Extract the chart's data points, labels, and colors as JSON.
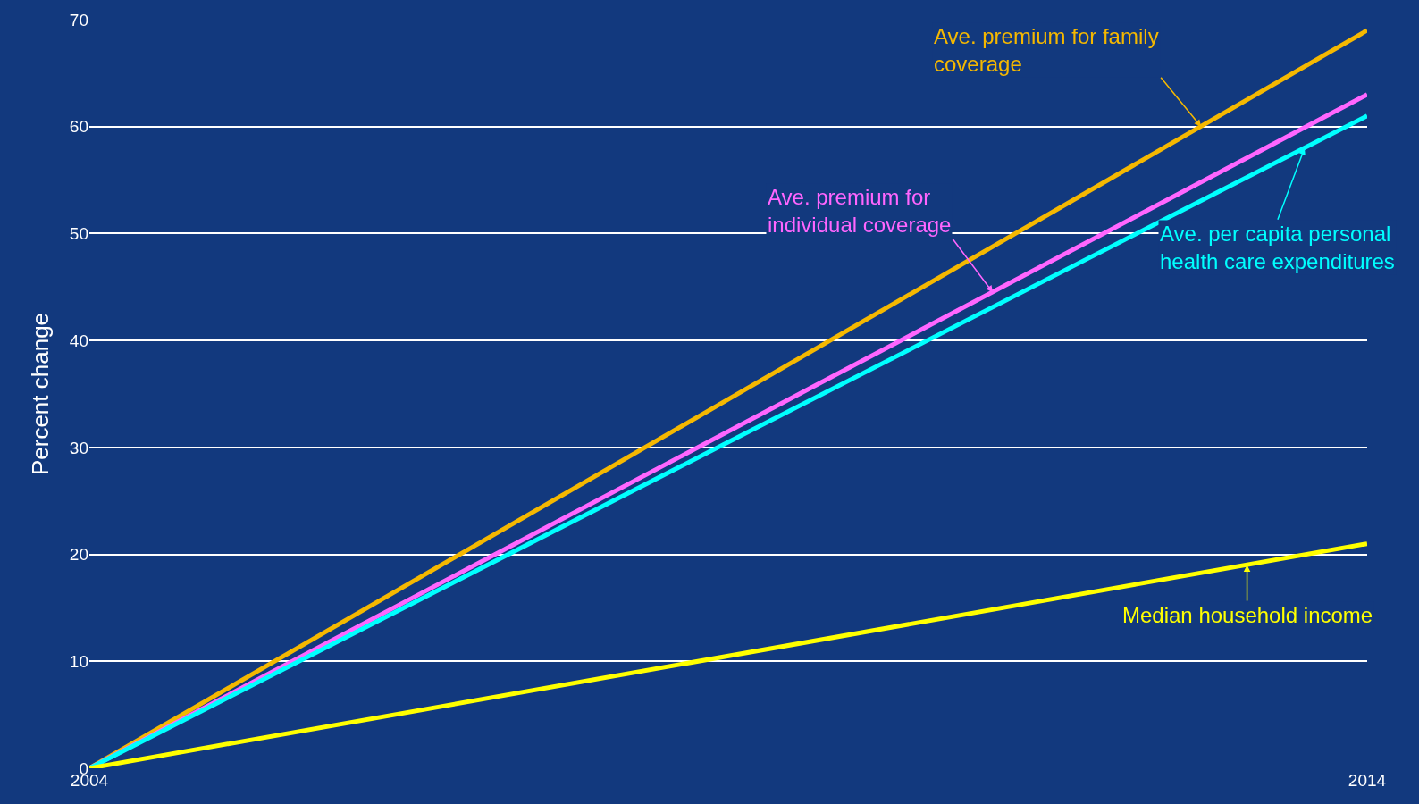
{
  "chart_data": {
    "type": "line",
    "ylabel": "Percent change",
    "x": [
      2004,
      2014
    ],
    "xlim": [
      2004,
      2014
    ],
    "xticks": [
      2004,
      2014
    ],
    "ylim": [
      0,
      70
    ],
    "yticks": [
      0,
      10,
      20,
      30,
      40,
      50,
      60,
      70
    ],
    "grid": "y",
    "marker": "none",
    "line_style": "solid",
    "series": [
      {
        "color": "#f5b800",
        "values": [
          0,
          69
        ]
      },
      {
        "color": "#ff66ff",
        "values": [
          0,
          63
        ]
      },
      {
        "color": "#00ffff",
        "values": [
          0,
          61
        ]
      },
      {
        "color": "#ffff00",
        "values": [
          0,
          21
        ]
      }
    ],
    "annotations": [
      {
        "text": "Ave. premium for family\ncoverage",
        "x": 2012.7,
        "y": 60
      },
      {
        "text": "Ave. premium for\nindividual coverage",
        "x": 2011.07,
        "y": 44.5
      },
      {
        "text": "Ave. per capita personal\nhealth care expenditures",
        "x": 2013.51,
        "y": 58
      },
      {
        "text": "Median household income",
        "x": 2013.06,
        "y": 19
      }
    ]
  }
}
